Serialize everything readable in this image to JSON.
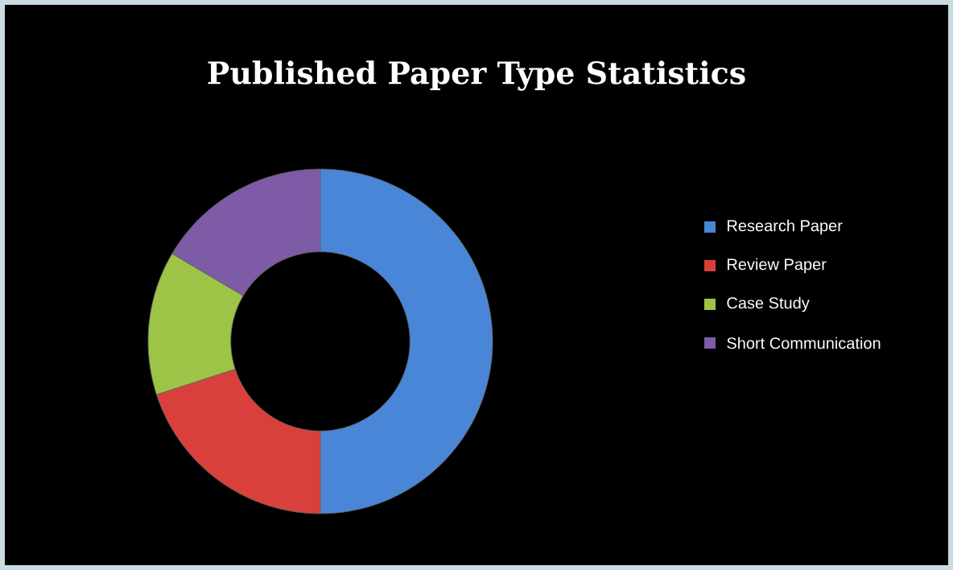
{
  "chart_data": {
    "type": "donut",
    "title": "Published Paper Type Statistics",
    "categories": [
      "Research Paper",
      "Review Paper",
      "Case Study",
      "Short Communication"
    ],
    "values": [
      50,
      20,
      13.5,
      16.5
    ],
    "colors": [
      "#4a86d8",
      "#d9403c",
      "#9dc447",
      "#7d5ba6"
    ],
    "legend": "right"
  }
}
